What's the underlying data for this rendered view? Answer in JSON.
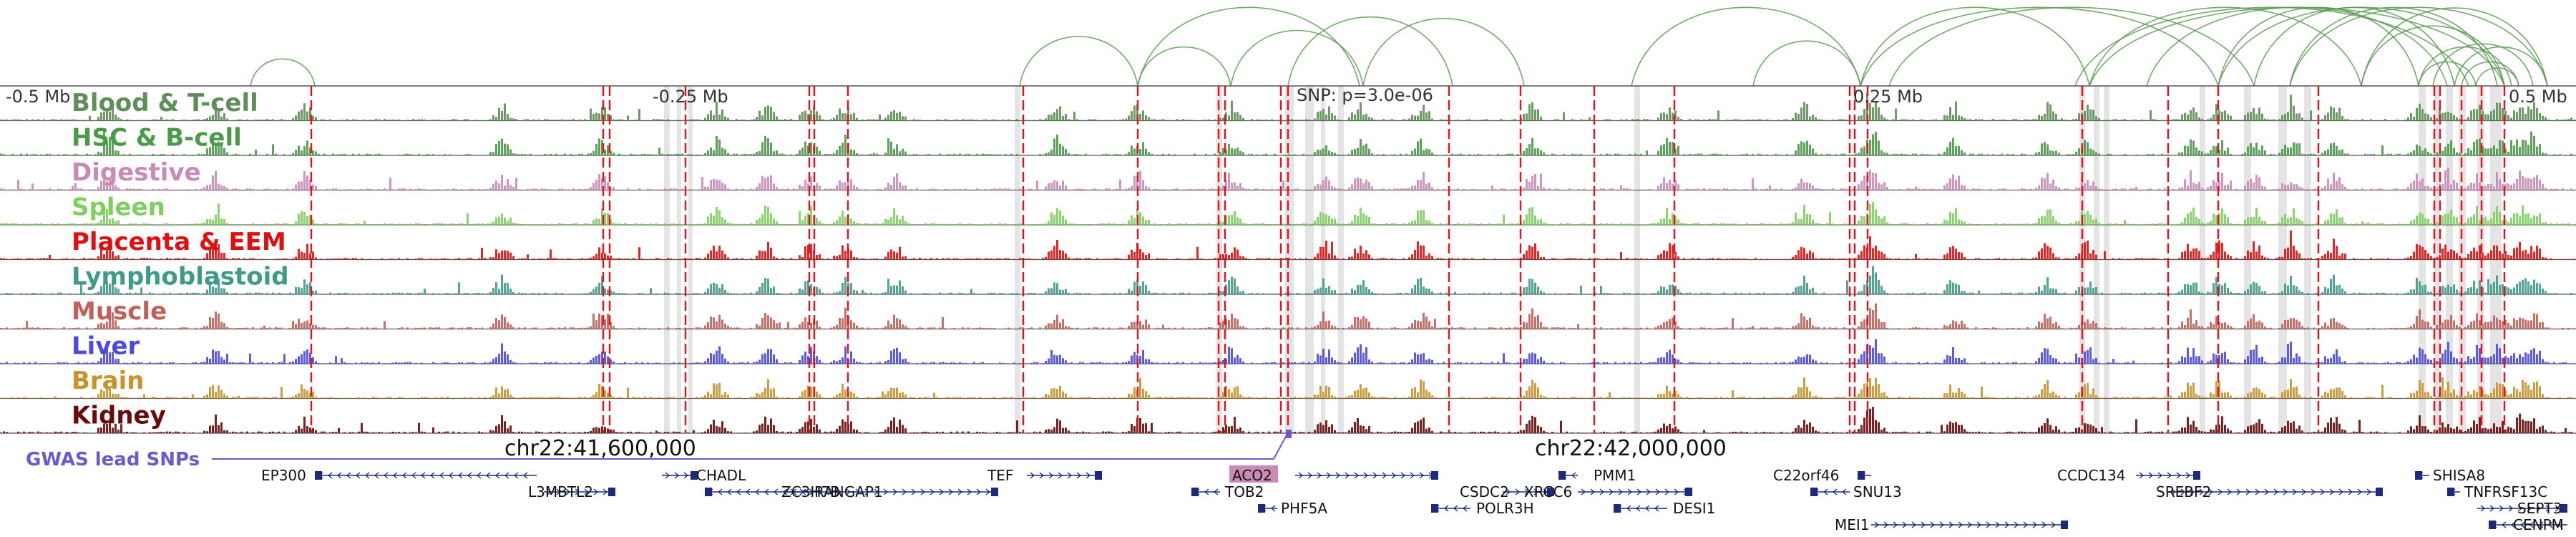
{
  "colors": {
    "loop": "#5a9a52",
    "snp_line": "#e8101a",
    "highlight": "#d9d9d9",
    "gwas": "#6a5acd",
    "gene": "#1c2a7a",
    "track_border": "#555555"
  },
  "axis": {
    "labels": [
      "-0.5 Mb",
      "-0.25 Mb",
      "0.25 Mb",
      "0.5 Mb"
    ],
    "snp_label": "SNP: p=3.0e-06"
  },
  "coordinates": [
    "chr22:41,600,000",
    "chr22:42,000,000"
  ],
  "gwas_label": "GWAS lead SNPs",
  "highlighted_gene": "ACO2",
  "tracks": [
    {
      "name": "Blood & T-cell",
      "color": "#5e8f58"
    },
    {
      "name": "HSC & B-cell",
      "color": "#4a9a48"
    },
    {
      "name": "Digestive",
      "color": "#c98bb5"
    },
    {
      "name": "Spleen",
      "color": "#7fcf60"
    },
    {
      "name": "Placenta & EEM",
      "color": "#e01010"
    },
    {
      "name": "Lymphoblastoid",
      "color": "#3f9a88"
    },
    {
      "name": "Muscle",
      "color": "#c0605a"
    },
    {
      "name": "Liver",
      "color": "#4a4ae0"
    },
    {
      "name": "Brain",
      "color": "#c9922a"
    },
    {
      "name": "Kidney",
      "color": "#6a0a0a"
    }
  ],
  "genes": [
    {
      "name": "EP300"
    },
    {
      "name": "L3MBTL2"
    },
    {
      "name": "CHADL"
    },
    {
      "name": "RANGAP1"
    },
    {
      "name": "ZC3H7B"
    },
    {
      "name": "TEF"
    },
    {
      "name": "ACO2"
    },
    {
      "name": "TOB2"
    },
    {
      "name": "PHF5A"
    },
    {
      "name": "CSDC2"
    },
    {
      "name": "POLR3H"
    },
    {
      "name": "PMM1"
    },
    {
      "name": "XRCC6"
    },
    {
      "name": "DESI1"
    },
    {
      "name": "C22orf46"
    },
    {
      "name": "SNU13"
    },
    {
      "name": "MEI1"
    },
    {
      "name": "CCDC134"
    },
    {
      "name": "SREBF2"
    },
    {
      "name": "SHISA8"
    },
    {
      "name": "TNFRSF13C"
    },
    {
      "name": "SEPT3"
    },
    {
      "name": "CENPM"
    }
  ]
}
